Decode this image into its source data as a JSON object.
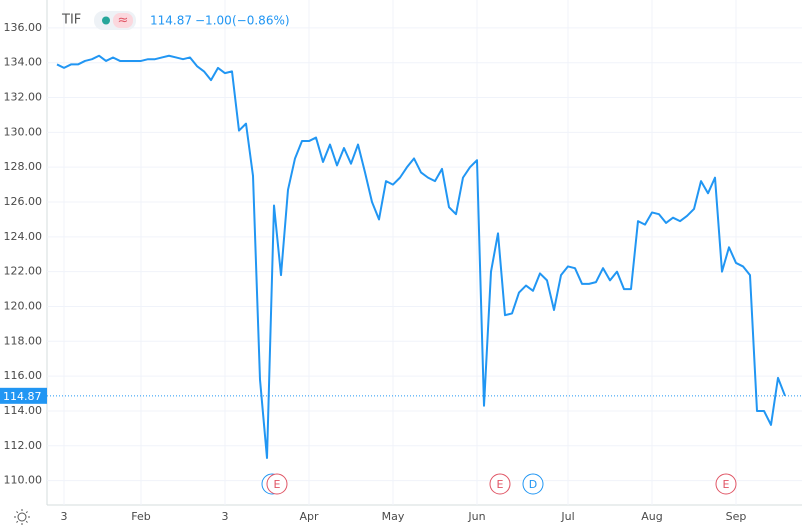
{
  "chart_data": {
    "type": "line",
    "symbol": "TIF",
    "change": "−1.00",
    "change_pct": "(−0.86%)",
    "last_value": 114.87,
    "color": "#2196f3",
    "grid": true,
    "ylim": [
      108.6,
      137.6
    ],
    "yticks": [
      {
        "value": 110,
        "label": "110.00"
      },
      {
        "value": 112,
        "label": "112.00"
      },
      {
        "value": 114,
        "label": "114.00"
      },
      {
        "value": 116,
        "label": "116.00"
      },
      {
        "value": 118,
        "label": "118.00"
      },
      {
        "value": 120,
        "label": "120.00"
      },
      {
        "value": 122,
        "label": "122.00"
      },
      {
        "value": 124,
        "label": "124.00"
      },
      {
        "value": 126,
        "label": "126.00"
      },
      {
        "value": 128,
        "label": "128.00"
      },
      {
        "value": 130,
        "label": "130.00"
      },
      {
        "value": 132,
        "label": "132.00"
      },
      {
        "value": 134,
        "label": "134.00"
      },
      {
        "value": 136,
        "label": "136.00"
      }
    ],
    "categories": [
      null,
      "3",
      null,
      null,
      null,
      null,
      null,
      null,
      null,
      null,
      null,
      null,
      "Feb",
      null,
      null,
      null,
      null,
      null,
      null,
      null,
      null,
      null,
      null,
      null,
      "3",
      null,
      null,
      null,
      null,
      null,
      null,
      null,
      null,
      null,
      null,
      null,
      "Apr",
      null,
      null,
      null,
      null,
      null,
      null,
      null,
      null,
      null,
      null,
      null,
      "May",
      null,
      null,
      null,
      null,
      null,
      null,
      null,
      null,
      null,
      null,
      null,
      "Jun",
      null,
      null,
      null,
      null,
      null,
      null,
      null,
      null,
      null,
      null,
      null,
      null,
      "Jul",
      null,
      null,
      null,
      null,
      null,
      null,
      null,
      null,
      null,
      null,
      null,
      "Aug",
      null,
      null,
      null,
      null,
      null,
      null,
      null,
      null,
      null,
      null,
      null,
      "Sep",
      null,
      null,
      null,
      null,
      null,
      null,
      null
    ],
    "values": [
      133.9,
      133.7,
      133.9,
      133.9,
      134.1,
      134.2,
      134.4,
      134.1,
      134.3,
      134.1,
      134.1,
      134.1,
      134.1,
      134.2,
      134.2,
      134.3,
      134.4,
      134.3,
      134.2,
      134.3,
      133.8,
      133.5,
      133.0,
      133.7,
      133.4,
      133.5,
      130.1,
      130.5,
      127.5,
      115.8,
      111.3,
      125.8,
      121.8,
      126.7,
      128.5,
      129.5,
      129.5,
      129.7,
      128.3,
      129.3,
      128.1,
      129.1,
      128.2,
      129.3,
      127.7,
      126.0,
      125.0,
      127.2,
      127.0,
      127.4,
      128.0,
      128.5,
      127.7,
      127.4,
      127.2,
      127.9,
      125.7,
      125.3,
      127.4,
      128.0,
      128.4,
      114.3,
      122.0,
      124.2,
      119.5,
      119.6,
      120.8,
      121.2,
      120.9,
      121.9,
      121.5,
      119.8,
      121.8,
      122.3,
      122.2,
      121.3,
      121.3,
      121.4,
      122.2,
      121.5,
      122.0,
      121.0,
      121.0,
      124.9,
      124.7,
      125.4,
      125.3,
      124.8,
      125.1,
      124.9,
      125.2,
      125.6,
      127.2,
      126.5,
      127.4,
      122.0,
      123.4,
      122.5,
      122.3,
      121.8,
      114.0,
      114.0,
      113.2,
      115.9,
      114.87
    ],
    "events": [
      {
        "label": "E",
        "color": "#e05565"
      },
      {
        "label": "E",
        "color": "#e05565"
      },
      {
        "label": "D",
        "color": "#2196f3"
      },
      {
        "label": "E",
        "color": "#e05565"
      }
    ]
  }
}
